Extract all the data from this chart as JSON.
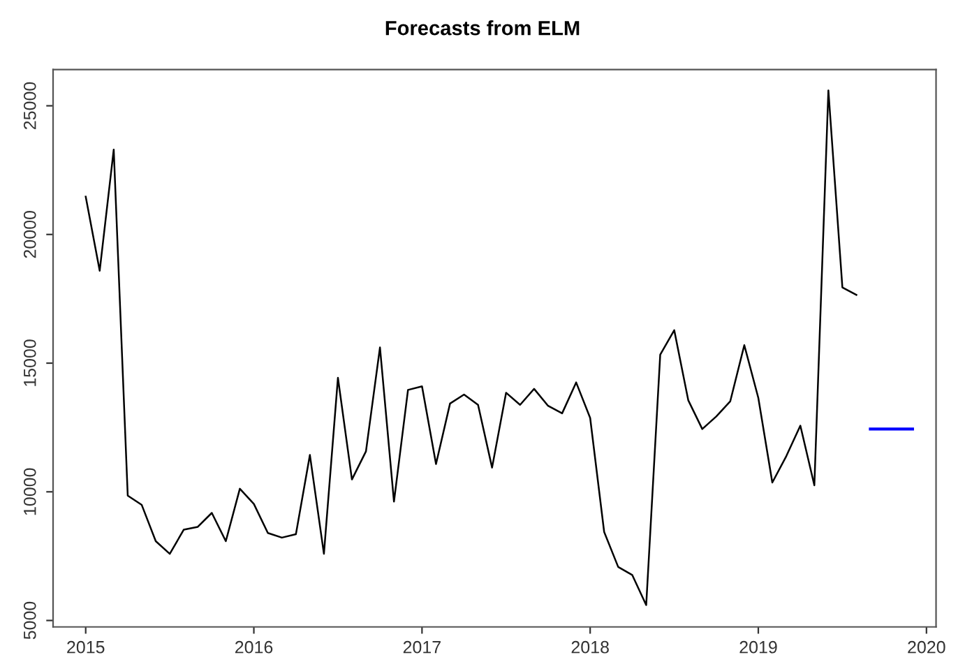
{
  "chart_data": {
    "type": "line",
    "title": "Forecasts from ELM",
    "xlim": [
      2014.806,
      2020.057
    ],
    "xticks": [
      2015,
      2016,
      2017,
      2018,
      2019,
      2020
    ],
    "ylim": [
      4750,
      26410
    ],
    "yticks": [
      5000,
      10000,
      15000,
      20000,
      25000
    ],
    "grid": false,
    "series": [
      {
        "color": "#000000",
        "x": [
          2015.0,
          2015.0833,
          2015.1667,
          2015.25,
          2015.3333,
          2015.4167,
          2015.5,
          2015.5833,
          2015.6667,
          2015.75,
          2015.8333,
          2015.9167,
          2016.0,
          2016.0833,
          2016.1667,
          2016.25,
          2016.3333,
          2016.4167,
          2016.5,
          2016.5833,
          2016.6667,
          2016.75,
          2016.8333,
          2016.9167,
          2017.0,
          2017.0833,
          2017.1667,
          2017.25,
          2017.3333,
          2017.4167,
          2017.5,
          2017.5833,
          2017.6667,
          2017.75,
          2017.8333,
          2017.9167,
          2018.0,
          2018.0833,
          2018.1667,
          2018.25,
          2018.3333,
          2018.4167,
          2018.5,
          2018.5833,
          2018.6667,
          2018.75,
          2018.8333,
          2018.9167,
          2019.0,
          2019.0833,
          2019.1667,
          2019.25,
          2019.3333,
          2019.4167,
          2019.5,
          2019.5833
        ],
        "values": [
          21470,
          18590,
          23300,
          9850,
          9490,
          8080,
          7590,
          8530,
          8640,
          9180,
          8080,
          10120,
          9530,
          8400,
          8220,
          8350,
          11430,
          7590,
          14430,
          10480,
          11570,
          15610,
          9620,
          13960,
          14100,
          11080,
          13430,
          13780,
          13380,
          10940,
          13850,
          13380,
          14000,
          13340,
          13050,
          14250,
          12870,
          8440,
          7080,
          6770,
          5600,
          15330,
          16280,
          13560,
          12440,
          12930,
          13520,
          15700,
          13650,
          10360,
          11390,
          12570,
          10250,
          25600,
          17940,
          17650
        ]
      },
      {
        "color": "#0000ff",
        "x": [
          2019.6667,
          2019.75,
          2019.8333,
          2019.9167
        ],
        "values": [
          12440,
          12440,
          12440,
          12440
        ]
      }
    ]
  }
}
